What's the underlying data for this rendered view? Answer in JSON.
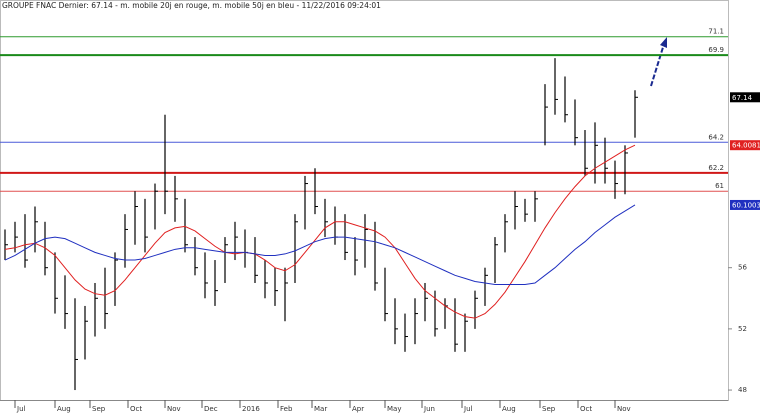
{
  "chart_data": {
    "type": "ohlc",
    "title": "GROUPE FNAC Dernier: 67.14 - m. mobile 20j en rouge, m. mobile 50j en bleu - 11/22/2016 09:24:01",
    "x": [
      0,
      1,
      2,
      3,
      4,
      5,
      6,
      7,
      8,
      9,
      10,
      11,
      12,
      13,
      14,
      15,
      16,
      17,
      18,
      19,
      20,
      21,
      22,
      23,
      24,
      25,
      26,
      27,
      28,
      29,
      30,
      31,
      32,
      33,
      34,
      35,
      36,
      37,
      38,
      39,
      40,
      41,
      42,
      43,
      44,
      45,
      46,
      47,
      48,
      49,
      50,
      51,
      52,
      53,
      54,
      55,
      56,
      57,
      58,
      59,
      60,
      61,
      62,
      63
    ],
    "ohlc": {
      "color": "#000000",
      "high": [
        58.5,
        59,
        59.5,
        60,
        59,
        57,
        55.5,
        54,
        53.5,
        55,
        56,
        57,
        59.5,
        61,
        60.5,
        61.5,
        66,
        62,
        60.5,
        58,
        57,
        56.5,
        58,
        59,
        58.5,
        58,
        56.5,
        56,
        56,
        59.5,
        62,
        62.5,
        60.5,
        60,
        59.5,
        58,
        59.5,
        59,
        56,
        54,
        53,
        54,
        55,
        54.5,
        54,
        54,
        53,
        54.5,
        56,
        58,
        59.5,
        61,
        60.5,
        61,
        68,
        69.7,
        68.5,
        67,
        65,
        65.5,
        64.5,
        63,
        64,
        67.6
      ],
      "low": [
        56.5,
        57,
        56,
        57,
        55.5,
        53,
        52,
        48,
        50,
        51.5,
        52,
        53.5,
        56,
        57.5,
        57,
        58.5,
        59.5,
        59,
        57,
        55.5,
        54,
        53.5,
        55,
        56.5,
        56,
        55,
        54,
        53.5,
        52.5,
        55,
        58.5,
        59.5,
        58,
        57.5,
        56.5,
        55.5,
        56,
        54.5,
        52.5,
        51,
        50.5,
        51,
        52.5,
        51.5,
        52,
        50.5,
        50.5,
        52,
        53.5,
        55,
        57,
        58.5,
        59,
        59,
        64,
        66,
        65.5,
        64,
        62,
        61.5,
        61.5,
        60.5,
        60.8,
        64.5
      ],
      "close": [
        57.5,
        58,
        56.5,
        59,
        56,
        54,
        53,
        50,
        52.5,
        54,
        53,
        56.5,
        58.5,
        60,
        58,
        61,
        61,
        60.5,
        57.5,
        56,
        55,
        54.5,
        57.5,
        58,
        57,
        55.5,
        55,
        54.5,
        55,
        59,
        61.5,
        60,
        59,
        58,
        57,
        56.5,
        58.5,
        55,
        53,
        52,
        51.5,
        53,
        54,
        52,
        53.5,
        51,
        52.5,
        54,
        55.5,
        57.5,
        59,
        60,
        59.5,
        60.5,
        66.5,
        67,
        66,
        64.5,
        62.5,
        64,
        62.5,
        61.5,
        63.5,
        67.14
      ]
    },
    "series": [
      {
        "name": "m. mobile 20j",
        "color": "#e02020",
        "values": [
          57.2,
          57.3,
          57.5,
          57.6,
          57.3,
          56.8,
          56,
          55.2,
          54.6,
          54.3,
          54.2,
          54.5,
          55.2,
          56,
          56.8,
          57.6,
          58.3,
          58.6,
          58.7,
          58.4,
          57.9,
          57.4,
          57,
          56.9,
          57,
          56.9,
          56.5,
          56,
          55.8,
          56.2,
          57,
          57.8,
          58.6,
          59,
          59,
          58.8,
          58.6,
          58.4,
          58,
          57.3,
          56.3,
          55.3,
          54.5,
          54,
          53.5,
          53.1,
          52.8,
          52.7,
          53,
          53.6,
          54.4,
          55.4,
          56.4,
          57.5,
          58.6,
          59.6,
          60.5,
          61.3,
          62,
          62.5,
          62.9,
          63.3,
          63.7,
          64.0081
        ]
      },
      {
        "name": "m. mobile 50j",
        "color": "#2030c0",
        "values": [
          56.5,
          56.8,
          57.2,
          57.6,
          57.9,
          58,
          57.9,
          57.6,
          57.3,
          57,
          56.8,
          56.6,
          56.5,
          56.5,
          56.6,
          56.8,
          57,
          57.2,
          57.3,
          57.3,
          57.2,
          57.1,
          57,
          57,
          57,
          56.9,
          56.8,
          56.8,
          56.9,
          57.1,
          57.4,
          57.7,
          57.9,
          58,
          58,
          57.9,
          57.8,
          57.7,
          57.5,
          57.3,
          57,
          56.7,
          56.4,
          56.1,
          55.8,
          55.5,
          55.3,
          55.1,
          55,
          54.9,
          54.9,
          54.9,
          54.9,
          55,
          55.5,
          56,
          56.6,
          57.2,
          57.7,
          58.3,
          58.8,
          59.3,
          59.7,
          60.1003
        ]
      }
    ],
    "levels": [
      {
        "value": 71.1,
        "label": "71.1",
        "color": "#2e9a2e",
        "weight": "light"
      },
      {
        "value": 69.9,
        "label": "69.9",
        "color": "#1a8a1a",
        "weight": "heavy"
      },
      {
        "value": 64.2,
        "label": "64.2",
        "color": "#4a5ad8",
        "weight": "light"
      },
      {
        "value": 62.2,
        "label": "62.2",
        "color": "#d01818",
        "weight": "heavy"
      },
      {
        "value": 61,
        "label": "61",
        "color": "#e05050",
        "weight": "light"
      }
    ],
    "xlim": [
      -0.5,
      72.3
    ],
    "xticks": [
      {
        "value": 1,
        "label": "Jul"
      },
      {
        "value": 5,
        "label": "Aug"
      },
      {
        "value": 8.5,
        "label": "Sep"
      },
      {
        "value": 12.3,
        "label": "Oct"
      },
      {
        "value": 16,
        "label": "Nov"
      },
      {
        "value": 19.7,
        "label": "Dec"
      },
      {
        "value": 23.5,
        "label": "2016"
      },
      {
        "value": 27.3,
        "label": "Feb"
      },
      {
        "value": 30.7,
        "label": "Mar"
      },
      {
        "value": 34.5,
        "label": "Apr"
      },
      {
        "value": 38,
        "label": "May"
      },
      {
        "value": 41.7,
        "label": "Jun"
      },
      {
        "value": 45.7,
        "label": "Jul"
      },
      {
        "value": 49.5,
        "label": "Aug"
      },
      {
        "value": 53.5,
        "label": "Sep"
      },
      {
        "value": 57.3,
        "label": "Oct"
      },
      {
        "value": 61,
        "label": "Nov"
      }
    ],
    "ylim": [
      47.35,
      73.5
    ],
    "yticks": [
      48,
      52,
      56
    ]
  }
}
